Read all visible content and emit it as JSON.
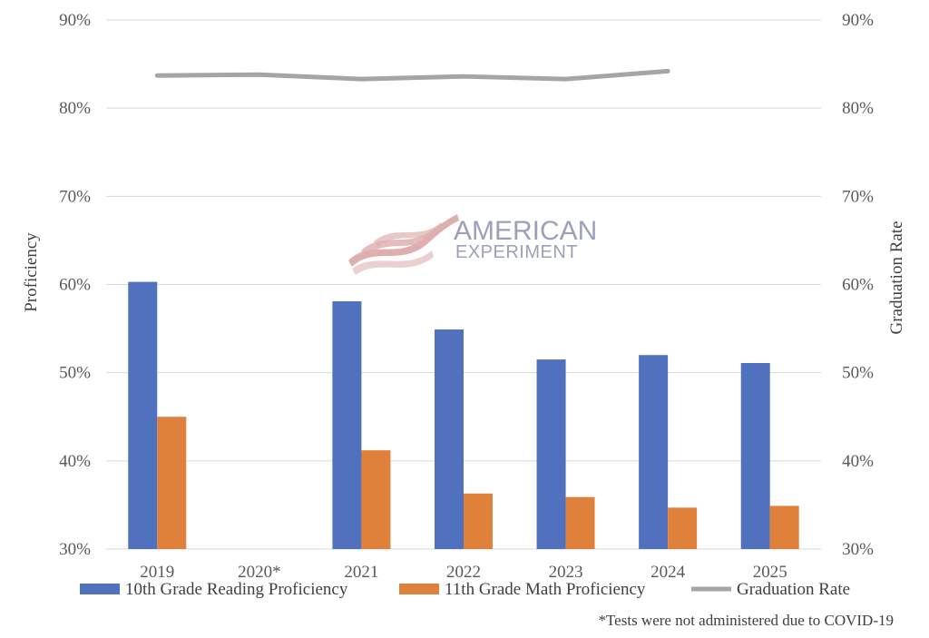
{
  "chart_data": {
    "type": "bar",
    "categories": [
      "2019",
      "2020*",
      "2021",
      "2022",
      "2023",
      "2024",
      "2025"
    ],
    "series": [
      {
        "name": "10th Grade Reading Proficiency",
        "kind": "bar",
        "axis": "left",
        "color": "#4f71be",
        "values": [
          60.3,
          null,
          58.1,
          54.9,
          51.5,
          52.0,
          51.1
        ]
      },
      {
        "name": "11th Grade Math Proficiency",
        "kind": "bar",
        "axis": "left",
        "color": "#e0813b",
        "values": [
          45.0,
          null,
          41.2,
          36.3,
          35.9,
          34.7,
          34.9
        ]
      },
      {
        "name": "Graduation Rate",
        "kind": "line",
        "axis": "right",
        "color": "#a5a5a5",
        "values": [
          83.7,
          83.8,
          83.3,
          83.6,
          83.3,
          84.2,
          null
        ]
      }
    ],
    "ylabel": "Proficiency",
    "y2label": "Graduation Rate",
    "ylim": [
      30,
      90
    ],
    "y2lim": [
      30,
      90
    ],
    "yticks": [
      "30%",
      "40%",
      "50%",
      "60%",
      "70%",
      "80%",
      "90%"
    ],
    "y2ticks": [
      "30%",
      "40%",
      "50%",
      "60%",
      "70%",
      "80%",
      "90%"
    ],
    "grid": true,
    "legend": "bottom",
    "footnote": "*Tests were not administered due to COVID-19"
  },
  "watermark": {
    "line1": "AMERICAN",
    "line2": "EXPERIMENT",
    "text_color": "#8b90b0",
    "flag_color": "#d9a2a2"
  }
}
